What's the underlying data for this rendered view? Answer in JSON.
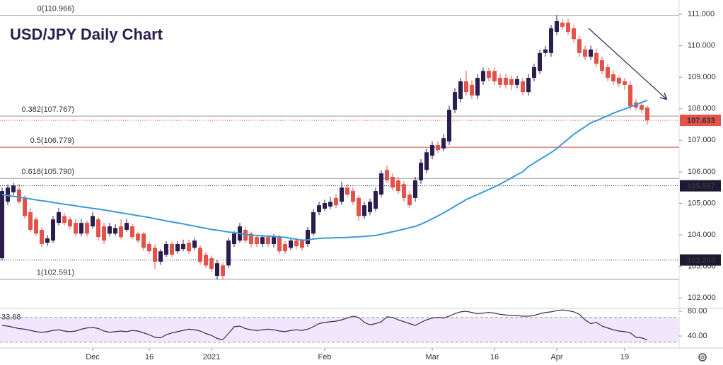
{
  "chart_data": {
    "type": "candlestick",
    "title": "USD/JPY Daily Chart",
    "categories": [
      null,
      null,
      null,
      null,
      null,
      null,
      null,
      null,
      null,
      null,
      null,
      null,
      null,
      null,
      null,
      null,
      "Dec",
      null,
      null,
      null,
      null,
      null,
      null,
      null,
      null,
      null,
      "16",
      null,
      null,
      null,
      null,
      null,
      null,
      null,
      null,
      null,
      null,
      "2021",
      null,
      null,
      null,
      null,
      null,
      null,
      null,
      null,
      null,
      null,
      null,
      null,
      null,
      null,
      null,
      null,
      null,
      null,
      null,
      "Feb",
      null,
      null,
      null,
      null,
      null,
      null,
      null,
      null,
      null,
      null,
      null,
      null,
      null,
      null,
      null,
      null,
      null,
      null,
      "Mar",
      null,
      null,
      null,
      null,
      null,
      null,
      null,
      null,
      null,
      null,
      "16",
      null,
      null,
      null,
      null,
      null,
      null,
      null,
      null,
      null,
      null,
      "Apr",
      null,
      null,
      null,
      null,
      null,
      null,
      null,
      null,
      null,
      null,
      null,
      "19",
      null,
      null,
      null,
      null
    ],
    "open": [
      103.26,
      105.05,
      105.35,
      105.44,
      105.17,
      104.72,
      104.49,
      104.16,
      103.75,
      103.82,
      104.38,
      104.6,
      104.49,
      104.38,
      104.04,
      104.38,
      104.27,
      104.49,
      104.27,
      104.04,
      104.04,
      104.27,
      104.16,
      104.27,
      104.04,
      104.04,
      103.71,
      103.59,
      103.15,
      103.37,
      103.71,
      103.48,
      103.55,
      103.75,
      103.59,
      103.59,
      103.37,
      103.26,
      102.7,
      103.03,
      103.03,
      103.71,
      103.82,
      104.16,
      104.04,
      103.93,
      103.71,
      103.93,
      103.71,
      103.93,
      103.71,
      103.59,
      103.82,
      103.82,
      103.71,
      104.04,
      104.72,
      104.83,
      104.9,
      105.17,
      105.05,
      105.5,
      105.39,
      105.17,
      104.6,
      104.72,
      104.83,
      105.28,
      106.06,
      105.84,
      105.73,
      105.61,
      105.28,
      105.17,
      105.73,
      106.06,
      106.51,
      106.85,
      106.74,
      106.96,
      107.97,
      108.31,
      108.87,
      108.76,
      108.42,
      108.87,
      109.2,
      109.2,
      108.98,
      108.98,
      108.94,
      108.76,
      108.87,
      108.53,
      108.98,
      109.2,
      109.77,
      109.77,
      110.44,
      110.73,
      110.73,
      110.55,
      110.21,
      109.88,
      109.65,
      109.77,
      109.54,
      109.32,
      109.09,
      108.98,
      108.87,
      108.76,
      108.2,
      108.12,
      108.04
    ],
    "high": [
      105.5,
      105.6,
      105.66,
      105.62,
      105.25,
      104.85,
      104.56,
      104.25,
      104.0,
      104.6,
      104.85,
      104.7,
      104.58,
      104.5,
      104.5,
      104.45,
      104.72,
      104.56,
      104.38,
      104.38,
      104.35,
      104.49,
      104.5,
      104.35,
      104.1,
      104.1,
      103.8,
      103.7,
      103.55,
      103.8,
      103.78,
      103.8,
      103.85,
      103.85,
      103.9,
      103.66,
      103.45,
      103.35,
      103.2,
      103.1,
      103.9,
      104.12,
      104.38,
      104.25,
      104.1,
      104.0,
      104.0,
      104.0,
      104.02,
      104.0,
      103.8,
      103.9,
      103.9,
      103.88,
      104.25,
      104.82,
      105.05,
      105.12,
      105.2,
      105.3,
      105.68,
      105.62,
      105.5,
      105.25,
      105.05,
      105.15,
      105.5,
      106.05,
      106.2,
      105.95,
      105.84,
      105.7,
      105.39,
      105.84,
      106.4,
      106.74,
      106.96,
      106.96,
      107.2,
      108.1,
      108.65,
      108.98,
      109.2,
      108.9,
      109.1,
      109.31,
      109.3,
      109.31,
      109.1,
      109.1,
      109.05,
      109.05,
      108.98,
      109.1,
      109.43,
      109.88,
      109.99,
      110.66,
      110.97,
      110.85,
      110.85,
      110.66,
      110.3,
      110.0,
      110.0,
      109.9,
      109.65,
      109.43,
      109.2,
      109.05,
      108.98,
      108.87,
      108.3,
      108.2,
      108.1
    ],
    "low": [
      103.2,
      104.95,
      105.25,
      104.98,
      104.52,
      104.08,
      103.97,
      103.62,
      103.65,
      103.75,
      104.3,
      104.3,
      104.2,
      103.95,
      103.95,
      103.95,
      104.2,
      103.82,
      103.71,
      103.95,
      103.97,
      103.86,
      104.1,
      103.86,
      103.75,
      103.5,
      103.4,
      102.92,
      103.05,
      103.3,
      103.3,
      103.4,
      103.48,
      103.4,
      103.52,
      103.05,
      102.95,
      102.82,
      102.59,
      102.6,
      102.95,
      103.62,
      103.75,
      103.75,
      103.6,
      103.62,
      103.62,
      103.62,
      103.6,
      103.4,
      103.4,
      103.52,
      103.55,
      103.5,
      103.62,
      103.97,
      104.62,
      104.75,
      104.82,
      104.85,
      104.95,
      105.2,
      104.95,
      104.45,
      104.5,
      104.62,
      104.75,
      105.2,
      105.65,
      105.4,
      105.3,
      105.05,
      104.85,
      105.05,
      105.62,
      105.95,
      106.4,
      106.6,
      106.65,
      106.85,
      107.86,
      108.2,
      108.42,
      108.31,
      108.31,
      108.76,
      108.87,
      108.76,
      108.65,
      108.65,
      108.6,
      108.65,
      108.42,
      108.42,
      108.87,
      109.1,
      109.65,
      109.65,
      110.33,
      110.5,
      110.33,
      110.1,
      109.65,
      109.55,
      109.55,
      109.32,
      109.1,
      108.87,
      108.76,
      108.7,
      108.6,
      107.97,
      107.95,
      107.86,
      107.5
    ],
    "close": [
      105.39,
      105.5,
      105.57,
      105.05,
      104.6,
      104.16,
      104.04,
      103.71,
      103.89,
      104.49,
      104.72,
      104.38,
      104.27,
      104.04,
      104.38,
      104.04,
      104.6,
      103.93,
      103.82,
      104.27,
      104.22,
      103.93,
      104.38,
      103.93,
      103.82,
      103.59,
      103.48,
      103.15,
      103.48,
      103.71,
      103.37,
      103.71,
      103.71,
      103.48,
      103.82,
      103.15,
      103.03,
      102.92,
      103.1,
      102.7,
      103.82,
      104.04,
      104.27,
      103.82,
      103.71,
      103.71,
      103.93,
      103.71,
      103.93,
      103.48,
      103.48,
      103.82,
      103.64,
      103.59,
      104.16,
      104.72,
      104.94,
      105.01,
      105.05,
      104.94,
      105.5,
      105.28,
      105.05,
      104.6,
      104.94,
      105.05,
      105.39,
      105.95,
      105.73,
      105.5,
      105.39,
      105.17,
      104.94,
      105.73,
      106.29,
      106.62,
      106.85,
      106.69,
      107.07,
      107.97,
      108.53,
      108.87,
      108.53,
      108.42,
      108.98,
      109.2,
      108.98,
      108.87,
      108.76,
      108.76,
      108.76,
      108.94,
      108.53,
      108.98,
      109.32,
      109.77,
      109.88,
      110.55,
      110.78,
      110.6,
      110.44,
      110.21,
      109.77,
      109.65,
      109.88,
      109.43,
      109.2,
      108.98,
      108.87,
      108.8,
      108.76,
      108.08,
      108.04,
      107.97,
      107.633
    ],
    "up_color": "#2b1d4e",
    "down_color": "#e2534a",
    "ylim": [
      101.69,
      111.45
    ],
    "yticks": [
      {
        "value": 102,
        "label": "102.000"
      },
      {
        "value": 103,
        "label": "103.000"
      },
      {
        "value": 104,
        "label": "104.000"
      },
      {
        "value": 105,
        "label": "105.000"
      },
      {
        "value": 106,
        "label": "106.000"
      },
      {
        "value": 107,
        "label": "107.000"
      },
      {
        "value": 108,
        "label": "108.000"
      },
      {
        "value": 109,
        "label": "109.000"
      },
      {
        "value": 110,
        "label": "110.000"
      },
      {
        "value": 111,
        "label": "111.000"
      }
    ],
    "ma": {
      "color": "#3a9ad9",
      "values": [
        105.28,
        105.25,
        105.22,
        105.2,
        105.17,
        105.14,
        105.11,
        105.08,
        105.06,
        105.03,
        105.0,
        104.97,
        104.95,
        104.92,
        104.89,
        104.87,
        104.84,
        104.82,
        104.79,
        104.76,
        104.73,
        104.7,
        104.67,
        104.64,
        104.61,
        104.58,
        104.55,
        104.51,
        104.48,
        104.44,
        104.41,
        104.38,
        104.35,
        104.31,
        104.28,
        104.24,
        104.21,
        104.17,
        104.15,
        104.12,
        104.09,
        104.07,
        104.04,
        104.01,
        103.99,
        103.98,
        103.97,
        103.96,
        103.95,
        103.94,
        103.92,
        103.89,
        103.86,
        103.83,
        103.84,
        103.87,
        103.89,
        103.9,
        103.9,
        103.91,
        103.91,
        103.92,
        103.93,
        103.94,
        103.95,
        103.97,
        103.98,
        104.02,
        104.06,
        104.1,
        104.14,
        104.18,
        104.23,
        104.27,
        104.34,
        104.42,
        104.51,
        104.6,
        104.7,
        104.8,
        104.91,
        105.01,
        105.12,
        105.2,
        105.28,
        105.36,
        105.44,
        105.52,
        105.61,
        105.71,
        105.81,
        105.91,
        106.0,
        106.17,
        106.28,
        106.39,
        106.5,
        106.61,
        106.74,
        106.89,
        107.04,
        107.19,
        107.31,
        107.43,
        107.55,
        107.62,
        107.7,
        107.78,
        107.86,
        107.93,
        107.99,
        108.06,
        108.13,
        108.2,
        108.27
      ]
    },
    "fib_levels": [
      {
        "value": 110.966,
        "label": "0(110.966)",
        "color": "#9a9a9a"
      },
      {
        "value": 107.767,
        "label": "0.382(107.767)",
        "color": "#9a9a9a"
      },
      {
        "value": 106.779,
        "label": "0.5(106.779)",
        "color": "#d2453c"
      },
      {
        "value": 105.79,
        "label": "0.618(105.790)",
        "color": "#9a9a9a"
      },
      {
        "value": 102.591,
        "label": "1(102.591)",
        "color": "#9a9a9a"
      }
    ],
    "price_tags": [
      {
        "value": 107.633,
        "color": "#e2534a"
      },
      {
        "value": 105.557,
        "color": "#1f1a33"
      },
      {
        "value": 103.203,
        "color": "#1f1a33"
      }
    ],
    "rsi": {
      "color": "#3b2b5e",
      "values": [
        57,
        56,
        54,
        52,
        51,
        49,
        47,
        46,
        47,
        49,
        50,
        48,
        47,
        48,
        51,
        53,
        54,
        52,
        48,
        46,
        47,
        48,
        47,
        49,
        48,
        45,
        42,
        38,
        37,
        42,
        45,
        47,
        49,
        51,
        50,
        48,
        44,
        41,
        36,
        34,
        44,
        55,
        56,
        52,
        50,
        49,
        50,
        51,
        50,
        48,
        47,
        49,
        50,
        49,
        51,
        55,
        60,
        62,
        63,
        64,
        66,
        69,
        72,
        70,
        62,
        58,
        60,
        63,
        71,
        70,
        66,
        63,
        60,
        57,
        62,
        66,
        69,
        70,
        69,
        72,
        76,
        79,
        80,
        78,
        76,
        77,
        78,
        77,
        75,
        74,
        73,
        73,
        72,
        72,
        73,
        76,
        78,
        79,
        81,
        82,
        81,
        79,
        75,
        66,
        60,
        62,
        56,
        53,
        50,
        48,
        47,
        45,
        38,
        37,
        33.68
      ],
      "ylim": [
        20.6,
        83.4
      ],
      "yticks": [
        {
          "value": 40,
          "label": "40.00"
        },
        {
          "value": 80,
          "label": "80.00"
        }
      ],
      "band": [
        30,
        70
      ],
      "band_color": "#f1e6fb"
    }
  }
}
